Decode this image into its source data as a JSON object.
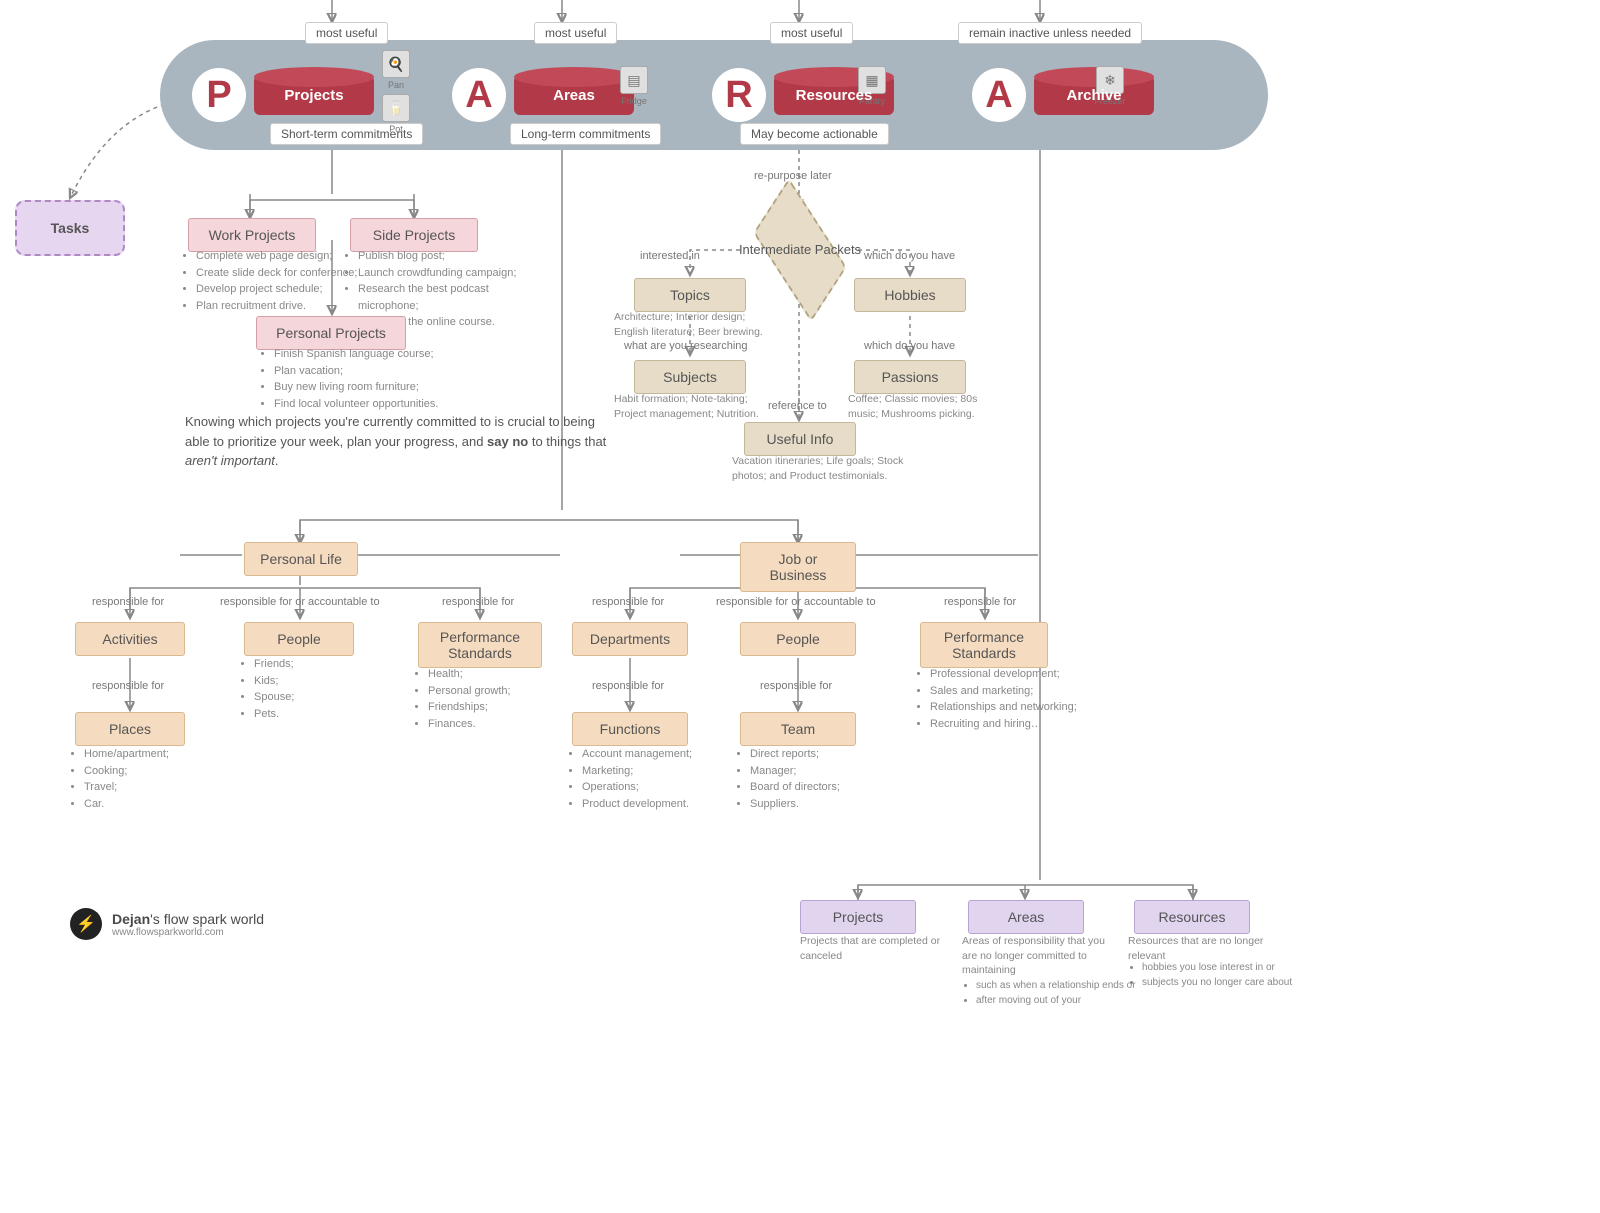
{
  "type": "flowchart",
  "colors": {
    "header_bg": "#a9b5bf",
    "cylinder_main": "#b23a48",
    "cylinder_top": "#c24a58",
    "letter_P": "#b23a48",
    "letter_A": "#b23a48",
    "letter_R": "#b23a48",
    "tasks_fill": "#e6d6ef",
    "tasks_border": "#b088c4",
    "pink_fill": "#f5d6db",
    "pink_border": "#d4a0a8",
    "tan_fill": "#e6dcc8",
    "tan_border": "#c4b89a",
    "peach_fill": "#f5dcc0",
    "peach_border": "#d9b98f",
    "lilac_fill": "#e0d4ef",
    "lilac_border": "#b9a3d4",
    "connector": "#888888",
    "text_primary": "#555555",
    "text_muted": "#888888",
    "brand_bg": "#222222",
    "brand_accent": "#f6c64a"
  },
  "header_tags": {
    "projects_top": "most useful",
    "areas_top": "most useful",
    "resources_top": "most useful",
    "archive_top": "remain inactive unless needed",
    "projects_bottom": "Short-term commitments",
    "areas_bottom": "Long-term commitments",
    "resources_bottom": "May become actionable"
  },
  "para": {
    "p": {
      "letter": "P",
      "label": "Projects"
    },
    "a1": {
      "letter": "A",
      "label": "Areas"
    },
    "r": {
      "letter": "R",
      "label": "Resources"
    },
    "a2": {
      "letter": "A",
      "label": "Archive"
    }
  },
  "icons": {
    "pan": "Pan",
    "pot": "Pot",
    "fridge": "Fridge",
    "pantry": "Pantry",
    "freezer": "Freezer"
  },
  "tasks_label": "Tasks",
  "projects": {
    "work": {
      "title": "Work Projects",
      "items": [
        "Complete web page design;",
        "Create slide deck for conference;",
        "Develop project schedule;",
        "Plan recruitment drive."
      ]
    },
    "side": {
      "title": "Side Projects",
      "items": [
        "Publish blog post;",
        "Launch crowdfunding campaign;",
        "Research the best podcast microphone;",
        "Complete the online course."
      ]
    },
    "personal": {
      "title": "Personal Projects",
      "items": [
        "Finish Spanish language course;",
        "Plan vacation;",
        "Buy new living room furniture;",
        "Find local volunteer opportunities."
      ]
    }
  },
  "prose_text": "Knowing which projects you're currently committed to is crucial to being able to prioritize your week, plan your progress, and <b>say no</b> to things that <i>aren't important</i>.",
  "resources": {
    "repurpose_label": "re-purpose later",
    "packets": "Intermediate Packets",
    "interested_label": "interested in",
    "which_have_label": "which do you have",
    "researching_label": "what are you researching",
    "which_have2_label": "which do you have",
    "reference_label": "reference to",
    "topics": {
      "title": "Topics",
      "sub": "Architecture; Interior design; English literature; Beer brewing."
    },
    "hobbies": {
      "title": "Hobbies",
      "sub": ""
    },
    "subjects": {
      "title": "Subjects",
      "sub": "Habit formation; Note-taking; Project management; Nutrition."
    },
    "passions": {
      "title": "Passions",
      "sub": "Coffee; Classic movies; 80s music; Mushrooms picking."
    },
    "useful": {
      "title": "Useful Info",
      "sub": "Vacation itineraries; Life goals; Stock photos; and Product testimonials."
    }
  },
  "areas": {
    "personal_life": "Personal Life",
    "job_business": "Job or Business",
    "resp_for": "responsible for",
    "resp_or_acc": "responsible for or accountable to",
    "activities": "Activities",
    "places": {
      "title": "Places",
      "items": [
        "Home/apartment;",
        "Cooking;",
        "Travel;",
        "Car."
      ]
    },
    "people_personal": {
      "title": "People",
      "items": [
        "Friends;",
        "Kids;",
        "Spouse;",
        "Pets."
      ]
    },
    "perf_personal": {
      "title": "Performance Standards",
      "items": [
        "Health;",
        "Personal growth;",
        "Friendships;",
        "Finances."
      ]
    },
    "departments": "Departments",
    "functions": {
      "title": "Functions",
      "items": [
        "Account management;",
        "Marketing;",
        "Operations;",
        "Product development."
      ]
    },
    "people_job": {
      "title": "People",
      "items": [
        "Direct reports;",
        "Manager;",
        "Board of directors;",
        "Suppliers."
      ]
    },
    "team": "Team",
    "perf_job": {
      "title": "Performance Standards",
      "items": [
        "Professional development;",
        "Sales and marketing;",
        "Relationships and networking;",
        "Recruiting and hiring…"
      ]
    }
  },
  "archive": {
    "projects": {
      "title": "Projects",
      "sub": "Projects that are completed or canceled"
    },
    "areas": {
      "title": "Areas",
      "sub": "Areas of responsibility that you are no longer committed to maintaining",
      "items": [
        "such as when a relationship ends or",
        "after moving out of your"
      ]
    },
    "resources": {
      "title": "Resources",
      "sub": "Resources that are no longer relevant",
      "items": [
        "hobbies you lose interest in or",
        "subjects you no longer care about"
      ]
    }
  },
  "brand": {
    "name_bold": "Dejan",
    "name_rest": "'s flow spark world",
    "url": "www.flowsparkworld.com"
  }
}
